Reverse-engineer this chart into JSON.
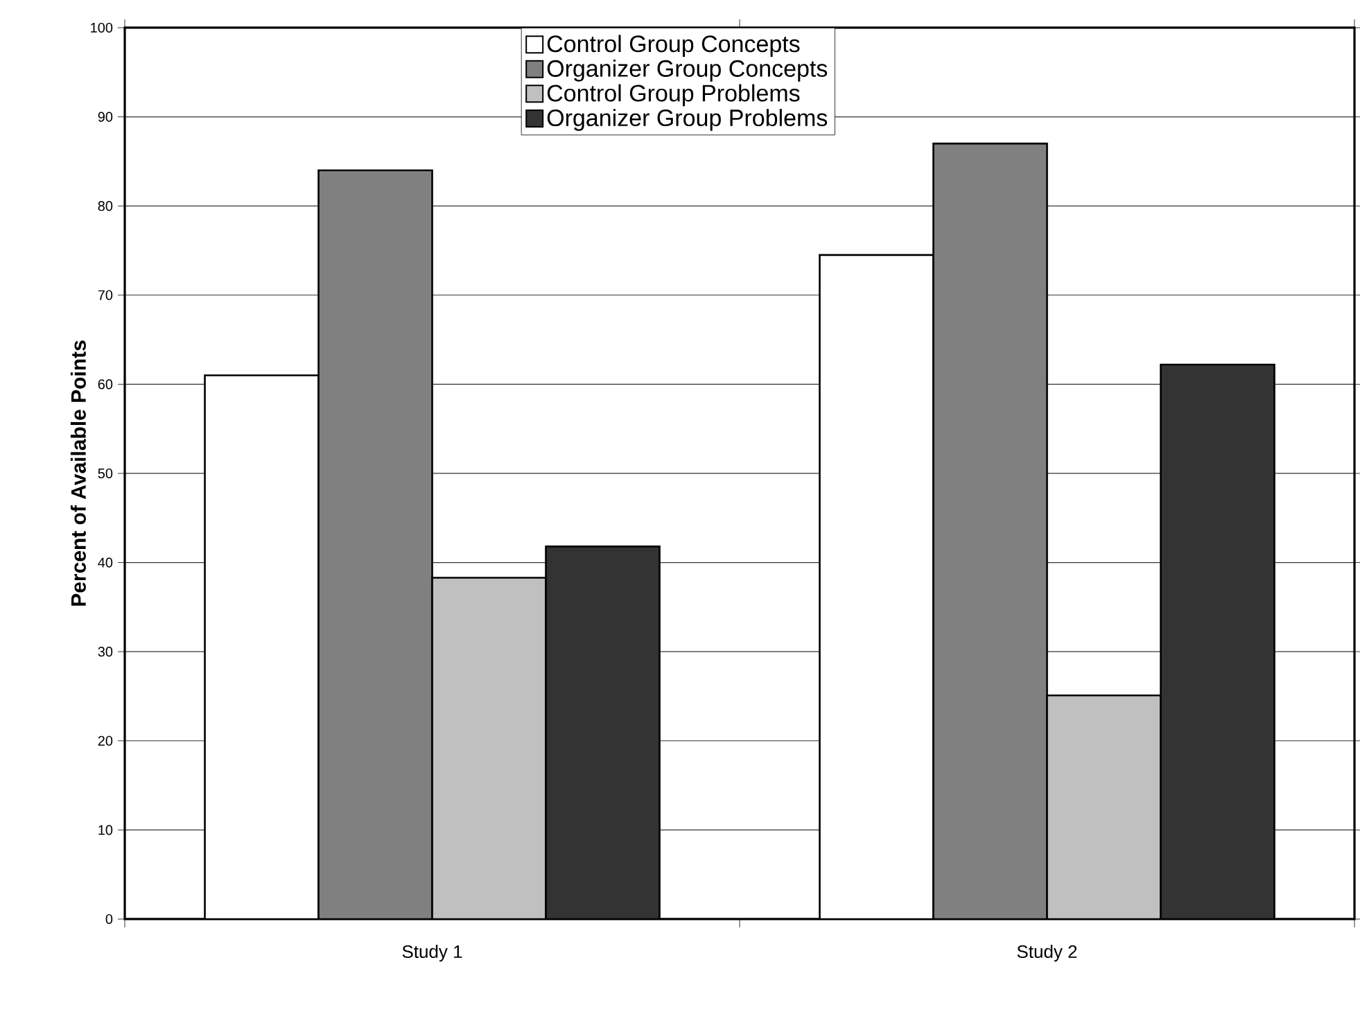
{
  "chart_data": {
    "type": "bar",
    "ylabel": "Percent of Available Points",
    "categories": [
      "Study 1",
      "Study 2"
    ],
    "series": [
      {
        "name": "Control Group Concepts",
        "color": "#ffffff",
        "values": [
          61,
          74.5
        ]
      },
      {
        "name": "Organizer Group Concepts",
        "color": "#808080",
        "values": [
          84,
          87
        ]
      },
      {
        "name": "Control Group Problems",
        "color": "#c0c0c0",
        "values": [
          38.3,
          25.1
        ]
      },
      {
        "name": "Organizer Group Problems",
        "color": "#333333",
        "values": [
          41.8,
          62.2
        ]
      }
    ],
    "ylim": [
      0,
      100
    ],
    "yticks": [
      0,
      10,
      20,
      30,
      40,
      50,
      60,
      70,
      80,
      90,
      100
    ],
    "grid": "y",
    "legend": "top"
  }
}
